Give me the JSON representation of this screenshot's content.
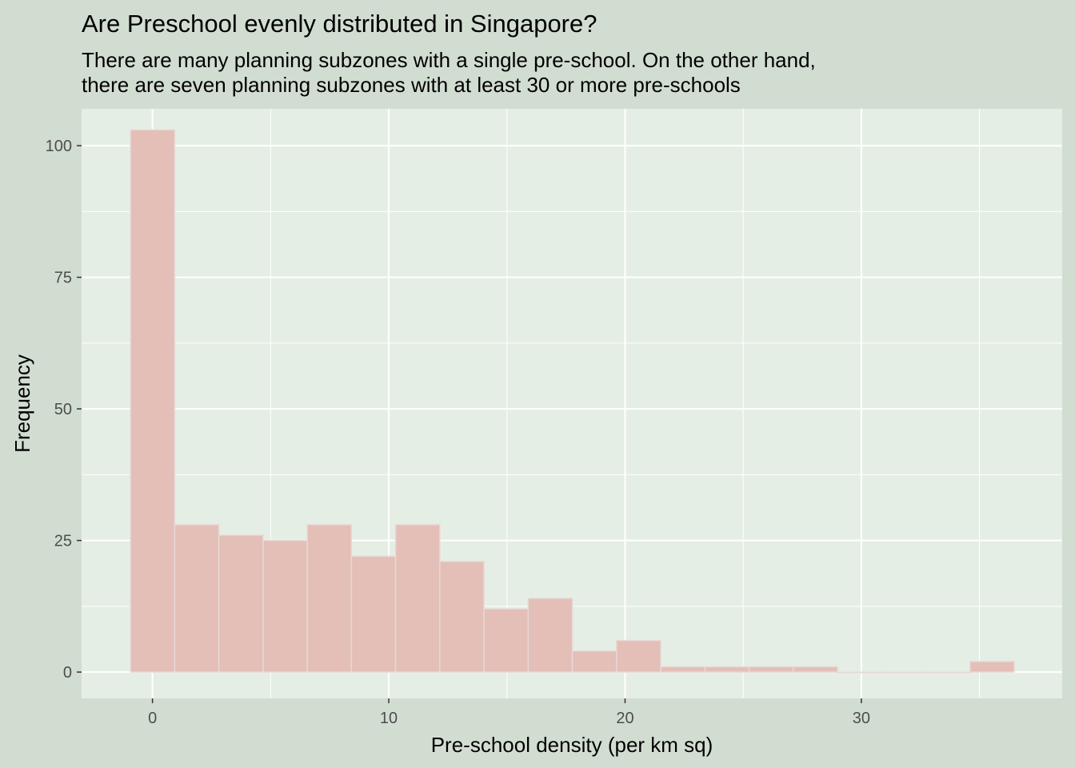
{
  "chart_data": {
    "type": "bar",
    "title": "Are Preschool evenly distributed in Singapore?",
    "subtitle_lines": [
      "There are many planning subzones with a single pre-school. On the other hand,",
      "there are seven planning subzones with at least 30 or more pre-schools"
    ],
    "xlabel": "Pre-school density (per km sq)",
    "ylabel": "Frequency",
    "xlim": [
      -3,
      38.5
    ],
    "ylim": [
      -5,
      107
    ],
    "x_ticks": [
      0,
      10,
      20,
      30
    ],
    "y_ticks": [
      0,
      25,
      50,
      75,
      100
    ],
    "bin_width": 1.87,
    "bins": [
      {
        "x0": -0.93,
        "x1": 0.94,
        "count": 103
      },
      {
        "x0": 0.94,
        "x1": 2.81,
        "count": 28
      },
      {
        "x0": 2.81,
        "x1": 4.68,
        "count": 26
      },
      {
        "x0": 4.68,
        "x1": 6.55,
        "count": 25
      },
      {
        "x0": 6.55,
        "x1": 8.42,
        "count": 28
      },
      {
        "x0": 8.42,
        "x1": 10.29,
        "count": 22
      },
      {
        "x0": 10.29,
        "x1": 12.16,
        "count": 28
      },
      {
        "x0": 12.16,
        "x1": 14.03,
        "count": 21
      },
      {
        "x0": 14.03,
        "x1": 15.9,
        "count": 12
      },
      {
        "x0": 15.9,
        "x1": 17.77,
        "count": 14
      },
      {
        "x0": 17.77,
        "x1": 19.64,
        "count": 4
      },
      {
        "x0": 19.64,
        "x1": 21.51,
        "count": 6
      },
      {
        "x0": 21.51,
        "x1": 23.38,
        "count": 1
      },
      {
        "x0": 23.38,
        "x1": 25.25,
        "count": 1
      },
      {
        "x0": 25.25,
        "x1": 27.12,
        "count": 1
      },
      {
        "x0": 27.12,
        "x1": 28.99,
        "count": 1
      },
      {
        "x0": 28.99,
        "x1": 30.86,
        "count": 0
      },
      {
        "x0": 30.86,
        "x1": 32.73,
        "count": 0
      },
      {
        "x0": 32.73,
        "x1": 34.6,
        "count": 0
      },
      {
        "x0": 34.6,
        "x1": 36.47,
        "count": 2
      }
    ],
    "colors": {
      "page_background": "#d2ddd2",
      "panel_background": "#e5eee5",
      "grid": "#ffffff",
      "bar_fill": "#e4bfb7",
      "bar_outline": "#e6d9d5"
    },
    "grid": true,
    "legend": "none"
  }
}
